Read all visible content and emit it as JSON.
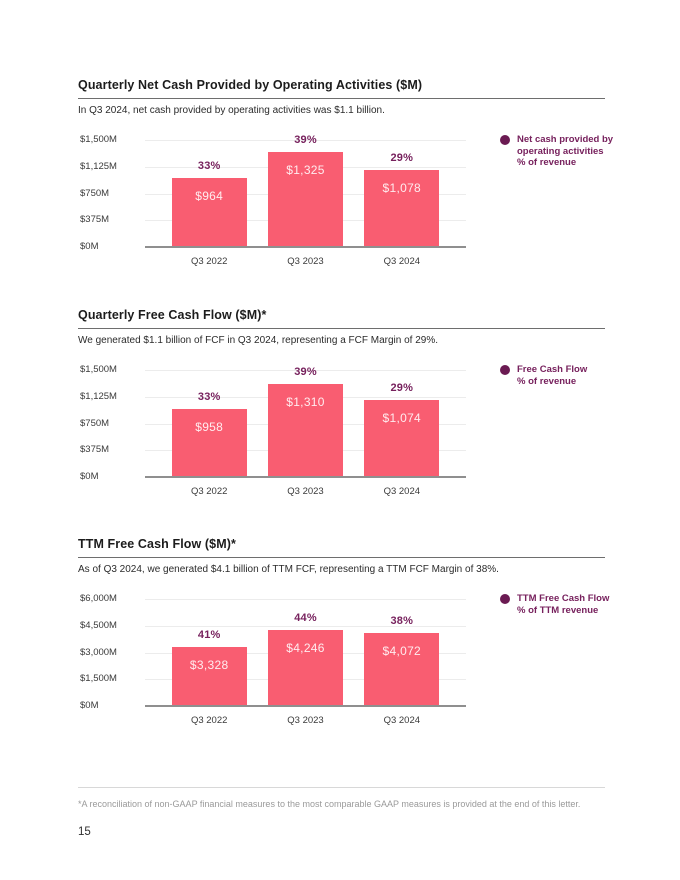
{
  "colors": {
    "bar": "#F95D71",
    "accent_purple": "#77215D",
    "legend_dot": "#6B1A52",
    "grid": "#ECECEC",
    "baseline": "#8F8F8F",
    "bar_label": "#FFECEF"
  },
  "footer": {
    "footnote": "*A reconciliation of non-GAAP financial measures to the most comparable GAAP measures is provided at the end of this letter.",
    "page_number": "15"
  },
  "chart_data": [
    {
      "type": "bar",
      "title": "Quarterly Net Cash Provided by Operating Activities ($M)",
      "subtitle": "In Q3 2024, net cash provided by operating activities was $1.1 billion.",
      "categories": [
        "Q3 2022",
        "Q3 2023",
        "Q3 2024"
      ],
      "values": [
        964,
        1325,
        1078
      ],
      "value_labels": [
        "$964",
        "$1,325",
        "$1,078"
      ],
      "pct_labels": [
        "33%",
        "39%",
        "29%"
      ],
      "ylim": [
        0,
        1500
      ],
      "ytick_labels": [
        "$1,500M",
        "$1,125M",
        "$750M",
        "$375M",
        "$0M"
      ],
      "grid": true,
      "legend_position": "right",
      "legend_lines": [
        "Net cash provided by",
        "operating activities",
        "% of revenue"
      ]
    },
    {
      "type": "bar",
      "title": "Quarterly Free Cash Flow ($M)*",
      "subtitle": "We generated $1.1 billion of FCF in Q3 2024, representing a FCF Margin of 29%.",
      "categories": [
        "Q3 2022",
        "Q3 2023",
        "Q3 2024"
      ],
      "values": [
        958,
        1310,
        1074
      ],
      "value_labels": [
        "$958",
        "$1,310",
        "$1,074"
      ],
      "pct_labels": [
        "33%",
        "39%",
        "29%"
      ],
      "ylim": [
        0,
        1500
      ],
      "ytick_labels": [
        "$1,500M",
        "$1,125M",
        "$750M",
        "$375M",
        "$0M"
      ],
      "grid": true,
      "legend_position": "right",
      "legend_lines": [
        "Free Cash Flow",
        "% of revenue"
      ]
    },
    {
      "type": "bar",
      "title": "TTM Free Cash Flow ($M)*",
      "subtitle": "As of Q3 2024, we generated $4.1 billion of TTM FCF, representing a TTM FCF Margin of 38%.",
      "categories": [
        "Q3 2022",
        "Q3 2023",
        "Q3 2024"
      ],
      "values": [
        3328,
        4246,
        4072
      ],
      "value_labels": [
        "$3,328",
        "$4,246",
        "$4,072"
      ],
      "pct_labels": [
        "41%",
        "44%",
        "38%"
      ],
      "ylim": [
        0,
        6000
      ],
      "ytick_labels": [
        "$6,000M",
        "$4,500M",
        "$3,000M",
        "$1,500M",
        "$0M"
      ],
      "grid": true,
      "legend_position": "right",
      "legend_lines": [
        "TTM Free Cash Flow",
        "% of TTM revenue"
      ]
    }
  ]
}
